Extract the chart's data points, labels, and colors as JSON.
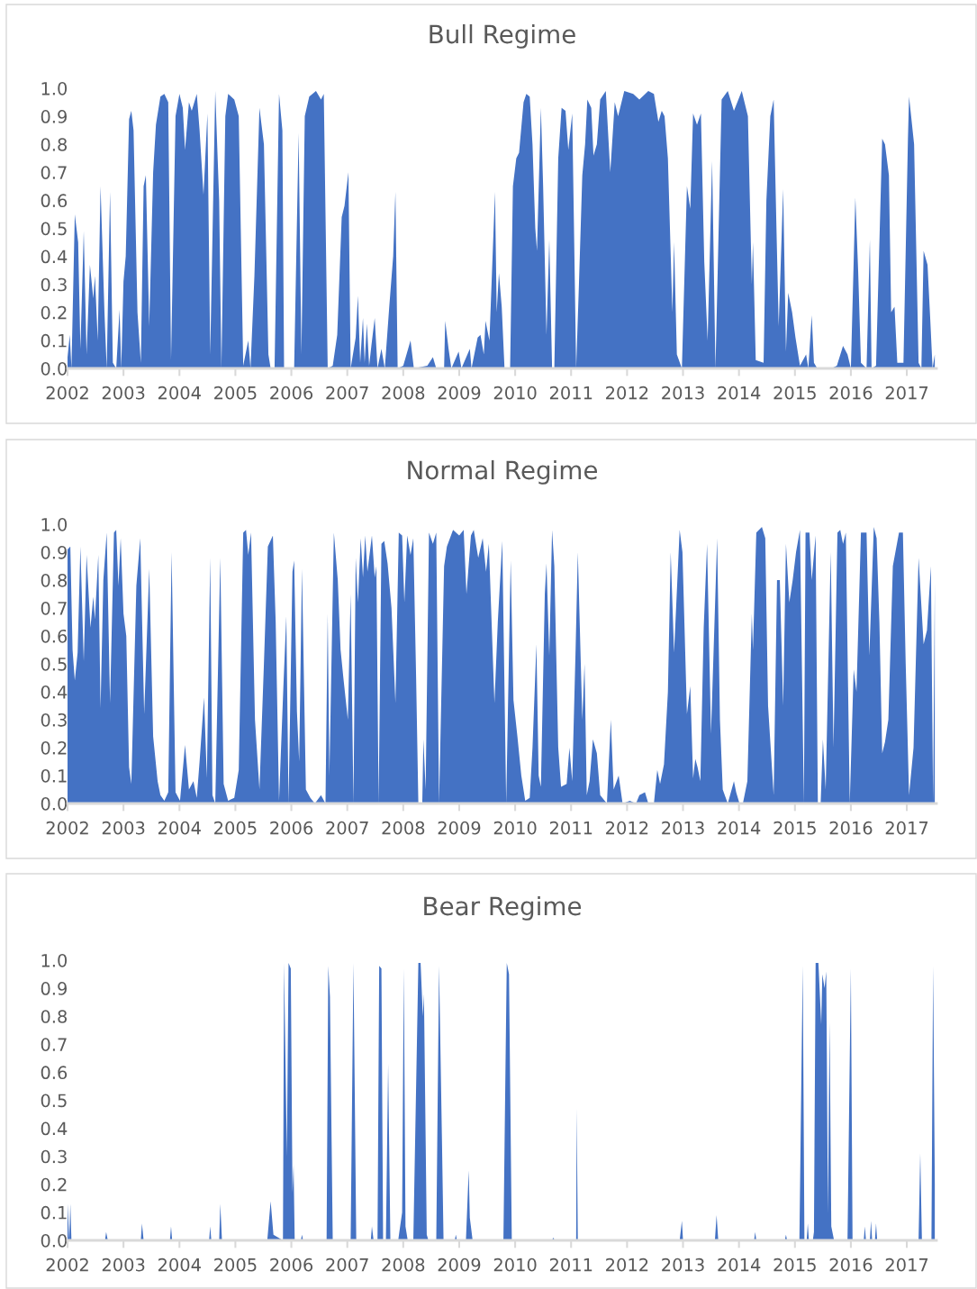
{
  "chart_data": [
    {
      "type": "area",
      "title": "Bull Regime",
      "color": "#4472c4",
      "grid": false,
      "xlim": [
        2002,
        2017.53
      ],
      "ylim": [
        0,
        1.0
      ],
      "xticks": [
        2002,
        2003,
        2004,
        2005,
        2006,
        2007,
        2008,
        2009,
        2010,
        2011,
        2012,
        2013,
        2014,
        2015,
        2016,
        2017
      ],
      "yticks": [
        {
          "value": 0,
          "label": "0.0"
        },
        {
          "value": 0.1,
          "label": "0.1"
        },
        {
          "value": 0.2,
          "label": "0.2"
        },
        {
          "value": 0.3,
          "label": "0.3"
        },
        {
          "value": 0.4,
          "label": "0.4"
        },
        {
          "value": 0.5,
          "label": "0.5"
        },
        {
          "value": 0.6,
          "label": "0.6"
        },
        {
          "value": 0.7,
          "label": "0.7"
        },
        {
          "value": 0.8,
          "label": "0.8"
        },
        {
          "value": 0.9,
          "label": "0.9"
        },
        {
          "value": 1.0,
          "label": "1.0"
        }
      ],
      "x": [
        2002.0,
        2002.04,
        2002.07,
        2002.13,
        2002.19,
        2002.23,
        2002.29,
        2002.34,
        2002.4,
        2002.46,
        2002.49,
        2002.54,
        2002.59,
        2002.66,
        2002.7,
        2002.76,
        2002.81,
        2002.87,
        2002.93,
        2002.96,
        2003.0,
        2003.04,
        2003.1,
        2003.14,
        2003.18,
        2003.25,
        2003.31,
        2003.36,
        2003.4,
        2003.46,
        2003.53,
        2003.58,
        2003.66,
        2003.73,
        2003.8,
        2003.85,
        2003.93,
        2004.0,
        2004.06,
        2004.1,
        2004.17,
        2004.22,
        2004.31,
        2004.36,
        2004.43,
        2004.5,
        2004.55,
        2004.64,
        2004.71,
        2004.75,
        2004.82,
        2004.87,
        2004.98,
        2005.06,
        2005.14,
        2005.23,
        2005.27,
        2005.34,
        2005.43,
        2005.51,
        2005.59,
        2005.63,
        2005.7,
        2005.78,
        2005.84,
        2005.87,
        2006.05,
        2006.13,
        2006.18,
        2006.24,
        2006.32,
        2006.44,
        2006.53,
        2006.58,
        2006.65,
        2006.74,
        2006.82,
        2006.9,
        2006.95,
        2007.02,
        2007.06,
        2007.15,
        2007.19,
        2007.23,
        2007.28,
        2007.31,
        2007.35,
        2007.39,
        2007.43,
        2007.49,
        2007.54,
        2007.61,
        2007.67,
        2007.75,
        2007.82,
        2007.86,
        2007.9,
        2008.0,
        2008.13,
        2008.19,
        2008.43,
        2008.53,
        2008.59,
        2008.73,
        2008.75,
        2008.81,
        2008.86,
        2008.99,
        2009.04,
        2009.19,
        2009.22,
        2009.33,
        2009.38,
        2009.44,
        2009.47,
        2009.54,
        2009.64,
        2009.67,
        2009.71,
        2009.76,
        2009.81,
        2009.91,
        2009.96,
        2010.02,
        2010.07,
        2010.15,
        2010.2,
        2010.26,
        2010.31,
        2010.36,
        2010.39,
        2010.46,
        2010.5,
        2010.56,
        2010.61,
        2010.66,
        2010.7,
        2010.77,
        2010.83,
        2010.9,
        2010.95,
        2011.02,
        2011.09,
        2011.14,
        2011.2,
        2011.25,
        2011.29,
        2011.36,
        2011.4,
        2011.46,
        2011.52,
        2011.62,
        2011.7,
        2011.78,
        2011.84,
        2011.95,
        2012.11,
        2012.22,
        2012.38,
        2012.48,
        2012.56,
        2012.62,
        2012.67,
        2012.73,
        2012.81,
        2012.84,
        2012.89,
        2012.98,
        2013.07,
        2013.13,
        2013.18,
        2013.25,
        2013.32,
        2013.38,
        2013.44,
        2013.52,
        2013.58,
        2013.69,
        2013.8,
        2013.91,
        2014.05,
        2014.16,
        2014.23,
        2014.25,
        2014.3,
        2014.44,
        2014.49,
        2014.56,
        2014.62,
        2014.67,
        2014.71,
        2014.79,
        2014.84,
        2014.88,
        2014.95,
        2015.01,
        2015.09,
        2015.2,
        2015.24,
        2015.3,
        2015.34,
        2015.4,
        2015.65,
        2015.75,
        2015.86,
        2015.94,
        2016.0,
        2016.08,
        2016.13,
        2016.18,
        2016.28,
        2016.34,
        2016.37,
        2016.45,
        2016.56,
        2016.61,
        2016.68,
        2016.72,
        2016.78,
        2016.83,
        2016.94,
        2017.02,
        2017.04,
        2017.13,
        2017.21,
        2017.26,
        2017.3,
        2017.37,
        2017.42,
        2017.46,
        2017.5
      ],
      "values": [
        0.04,
        0.12,
        0.0,
        0.55,
        0.45,
        0.07,
        0.49,
        0.05,
        0.37,
        0.25,
        0.33,
        0.1,
        0.65,
        0.2,
        0.0,
        0.63,
        0.02,
        0.0,
        0.21,
        0.0,
        0.31,
        0.4,
        0.89,
        0.92,
        0.85,
        0.2,
        0.02,
        0.65,
        0.69,
        0.15,
        0.7,
        0.87,
        0.97,
        0.98,
        0.95,
        0.03,
        0.9,
        0.98,
        0.93,
        0.78,
        0.95,
        0.92,
        0.98,
        0.85,
        0.62,
        0.91,
        0.05,
        0.99,
        0.6,
        0.0,
        0.9,
        0.98,
        0.96,
        0.9,
        0.01,
        0.1,
        0.0,
        0.33,
        0.93,
        0.8,
        0.05,
        0.0,
        0.0,
        0.98,
        0.85,
        0.0,
        0.0,
        0.84,
        0.05,
        0.9,
        0.97,
        0.99,
        0.96,
        0.98,
        0.0,
        0.01,
        0.12,
        0.54,
        0.58,
        0.7,
        0.0,
        0.11,
        0.26,
        0.02,
        0.18,
        0.02,
        0.16,
        0.01,
        0.08,
        0.18,
        0.0,
        0.07,
        0.0,
        0.22,
        0.4,
        0.63,
        0.0,
        0.01,
        0.1,
        0.0,
        0.01,
        0.04,
        0.0,
        0.0,
        0.17,
        0.07,
        0.0,
        0.06,
        0.0,
        0.07,
        0.0,
        0.11,
        0.12,
        0.05,
        0.17,
        0.1,
        0.63,
        0.2,
        0.34,
        0.22,
        0.0,
        0.0,
        0.65,
        0.75,
        0.77,
        0.95,
        0.98,
        0.97,
        0.8,
        0.5,
        0.42,
        0.93,
        0.65,
        0.12,
        0.46,
        0.0,
        0.0,
        0.75,
        0.93,
        0.92,
        0.78,
        0.91,
        0.0,
        0.3,
        0.69,
        0.8,
        0.96,
        0.93,
        0.76,
        0.8,
        0.96,
        0.99,
        0.7,
        0.95,
        0.9,
        0.99,
        0.98,
        0.96,
        0.99,
        0.98,
        0.88,
        0.92,
        0.9,
        0.75,
        0.2,
        0.45,
        0.05,
        0.0,
        0.65,
        0.57,
        0.91,
        0.87,
        0.91,
        0.38,
        0.1,
        0.74,
        0.0,
        0.96,
        0.99,
        0.92,
        0.99,
        0.9,
        0.3,
        0.45,
        0.03,
        0.02,
        0.6,
        0.9,
        0.96,
        0.5,
        0.15,
        0.64,
        0.06,
        0.27,
        0.2,
        0.11,
        0.01,
        0.05,
        0.0,
        0.19,
        0.02,
        0.0,
        0.0,
        0.01,
        0.08,
        0.05,
        0.0,
        0.61,
        0.35,
        0.02,
        0.0,
        0.46,
        0.0,
        0.01,
        0.82,
        0.8,
        0.69,
        0.2,
        0.22,
        0.02,
        0.02,
        0.82,
        0.97,
        0.8,
        0.02,
        0.0,
        0.42,
        0.37,
        0.17,
        0.0,
        0.05
      ]
    },
    {
      "type": "area",
      "title": "Normal Regime",
      "color": "#4472c4",
      "grid": false,
      "xlim": [
        2002,
        2017.53
      ],
      "ylim": [
        0,
        1.0
      ],
      "xticks": [
        2002,
        2003,
        2004,
        2005,
        2006,
        2007,
        2008,
        2009,
        2010,
        2011,
        2012,
        2013,
        2014,
        2015,
        2016,
        2017
      ],
      "yticks": [
        {
          "value": 0,
          "label": "0.0"
        },
        {
          "value": 0.1,
          "label": "0.1"
        },
        {
          "value": 0.2,
          "label": "0.2"
        },
        {
          "value": 0.3,
          "label": "0.3"
        },
        {
          "value": 0.4,
          "label": "0.4"
        },
        {
          "value": 0.5,
          "label": "0.5"
        },
        {
          "value": 0.6,
          "label": "0.6"
        },
        {
          "value": 0.7,
          "label": "0.7"
        },
        {
          "value": 0.8,
          "label": "0.8"
        },
        {
          "value": 0.9,
          "label": "0.9"
        },
        {
          "value": 1.0,
          "label": "1.0"
        }
      ],
      "x": [
        2002.0,
        2002.05,
        2002.09,
        2002.13,
        2002.18,
        2002.23,
        2002.29,
        2002.34,
        2002.41,
        2002.46,
        2002.49,
        2002.55,
        2002.59,
        2002.64,
        2002.7,
        2002.76,
        2002.83,
        2002.87,
        2002.91,
        2002.95,
        2003.0,
        2003.05,
        2003.1,
        2003.14,
        2003.23,
        2003.3,
        2003.37,
        2003.46,
        2003.53,
        2003.61,
        2003.66,
        2003.73,
        2003.8,
        2003.86,
        2003.93,
        2004.01,
        2004.1,
        2004.17,
        2004.25,
        2004.31,
        2004.36,
        2004.44,
        2004.49,
        2004.55,
        2004.59,
        2004.64,
        2004.73,
        2004.79,
        2004.87,
        2004.98,
        2005.06,
        2005.14,
        2005.19,
        2005.23,
        2005.28,
        2005.35,
        2005.43,
        2005.51,
        2005.58,
        2005.67,
        2005.72,
        2005.78,
        2005.86,
        2005.91,
        2005.95,
        2006.02,
        2006.05,
        2006.1,
        2006.14,
        2006.19,
        2006.26,
        2006.34,
        2006.42,
        2006.53,
        2006.61,
        2006.65,
        2006.68,
        2006.76,
        2006.83,
        2006.88,
        2006.93,
        2007.01,
        2007.06,
        2007.11,
        2007.15,
        2007.19,
        2007.24,
        2007.28,
        2007.32,
        2007.36,
        2007.44,
        2007.49,
        2007.52,
        2007.56,
        2007.61,
        2007.66,
        2007.72,
        2007.79,
        2007.86,
        2007.92,
        2007.98,
        2008.02,
        2008.07,
        2008.13,
        2008.18,
        2008.23,
        2008.27,
        2008.34,
        2008.36,
        2008.4,
        2008.46,
        2008.53,
        2008.59,
        2008.64,
        2008.73,
        2008.78,
        2008.89,
        2009.0,
        2009.08,
        2009.13,
        2009.21,
        2009.26,
        2009.34,
        2009.42,
        2009.48,
        2009.53,
        2009.63,
        2009.69,
        2009.77,
        2009.84,
        2009.92,
        2009.97,
        2010.04,
        2010.11,
        2010.18,
        2010.26,
        2010.31,
        2010.38,
        2010.42,
        2010.46,
        2010.53,
        2010.56,
        2010.61,
        2010.66,
        2010.7,
        2010.77,
        2010.82,
        2010.92,
        2010.97,
        2011.02,
        2011.08,
        2011.12,
        2011.2,
        2011.24,
        2011.28,
        2011.33,
        2011.39,
        2011.46,
        2011.52,
        2011.64,
        2011.71,
        2011.76,
        2011.85,
        2011.92,
        2012.05,
        2012.16,
        2012.22,
        2012.32,
        2012.38,
        2012.48,
        2012.54,
        2012.59,
        2012.66,
        2012.73,
        2012.78,
        2012.84,
        2012.94,
        2012.99,
        2013.07,
        2013.13,
        2013.18,
        2013.22,
        2013.26,
        2013.31,
        2013.37,
        2013.43,
        2013.5,
        2013.61,
        2013.66,
        2013.71,
        2013.8,
        2013.91,
        2013.95,
        2014.01,
        2014.07,
        2014.15,
        2014.23,
        2014.25,
        2014.31,
        2014.41,
        2014.47,
        2014.52,
        2014.62,
        2014.68,
        2014.73,
        2014.79,
        2014.84,
        2014.9,
        2014.96,
        2015.02,
        2015.09,
        2015.16,
        2015.19,
        2015.26,
        2015.3,
        2015.37,
        2015.41,
        2015.46,
        2015.5,
        2015.55,
        2015.64,
        2015.69,
        2015.76,
        2015.81,
        2015.86,
        2015.91,
        2015.98,
        2016.05,
        2016.1,
        2016.18,
        2016.28,
        2016.33,
        2016.41,
        2016.46,
        2016.51,
        2016.56,
        2016.61,
        2016.67,
        2016.75,
        2016.86,
        2016.93,
        2016.98,
        2017.04,
        2017.12,
        2017.21,
        2017.3,
        2017.36,
        2017.43,
        2017.47,
        2017.5
      ],
      "values": [
        0.91,
        0.92,
        0.55,
        0.44,
        0.54,
        0.92,
        0.51,
        0.89,
        0.63,
        0.74,
        0.66,
        0.89,
        0.34,
        0.8,
        0.97,
        0.36,
        0.97,
        0.98,
        0.78,
        0.95,
        0.68,
        0.6,
        0.13,
        0.07,
        0.78,
        0.95,
        0.32,
        0.84,
        0.24,
        0.08,
        0.03,
        0.01,
        0.04,
        0.9,
        0.04,
        0.01,
        0.21,
        0.05,
        0.08,
        0.02,
        0.15,
        0.38,
        0.09,
        0.88,
        0.03,
        0.0,
        0.88,
        0.07,
        0.01,
        0.02,
        0.12,
        0.97,
        0.98,
        0.89,
        0.97,
        0.3,
        0.05,
        0.5,
        0.92,
        0.96,
        0.65,
        0.01,
        0.43,
        0.67,
        0.0,
        0.83,
        0.87,
        0.33,
        0.15,
        0.84,
        0.05,
        0.02,
        0.0,
        0.03,
        0.0,
        0.68,
        0.1,
        0.97,
        0.8,
        0.55,
        0.45,
        0.3,
        0.75,
        0.0,
        0.88,
        0.72,
        0.95,
        0.81,
        0.96,
        0.83,
        0.96,
        0.81,
        0.85,
        0.0,
        0.93,
        0.94,
        0.86,
        0.7,
        0.36,
        0.97,
        0.96,
        0.72,
        0.96,
        0.89,
        0.95,
        0.45,
        0.0,
        0.0,
        0.23,
        0.05,
        0.97,
        0.93,
        0.97,
        0.0,
        0.85,
        0.92,
        0.98,
        0.96,
        0.98,
        0.75,
        0.96,
        0.98,
        0.88,
        0.95,
        0.83,
        0.93,
        0.36,
        0.65,
        0.94,
        0.0,
        0.87,
        0.37,
        0.24,
        0.1,
        0.01,
        0.02,
        0.2,
        0.57,
        0.1,
        0.06,
        0.75,
        0.86,
        0.53,
        0.98,
        0.85,
        0.2,
        0.06,
        0.07,
        0.2,
        0.08,
        0.55,
        0.9,
        0.3,
        0.5,
        0.03,
        0.08,
        0.23,
        0.18,
        0.03,
        0.0,
        0.3,
        0.05,
        0.1,
        0.0,
        0.01,
        0.0,
        0.03,
        0.04,
        0.0,
        0.0,
        0.12,
        0.07,
        0.14,
        0.4,
        0.9,
        0.54,
        0.98,
        0.9,
        0.32,
        0.42,
        0.09,
        0.16,
        0.13,
        0.08,
        0.63,
        0.93,
        0.25,
        0.95,
        0.3,
        0.05,
        0.0,
        0.08,
        0.04,
        0.0,
        0.0,
        0.08,
        0.68,
        0.55,
        0.97,
        0.99,
        0.95,
        0.35,
        0.03,
        0.8,
        0.8,
        0.35,
        0.93,
        0.72,
        0.8,
        0.9,
        0.98,
        0.0,
        0.97,
        0.97,
        0.8,
        0.96,
        0.0,
        0.0,
        0.23,
        0.05,
        0.9,
        0.2,
        0.97,
        0.98,
        0.93,
        0.97,
        0.0,
        0.48,
        0.4,
        0.97,
        0.97,
        0.53,
        0.99,
        0.95,
        0.65,
        0.18,
        0.22,
        0.3,
        0.85,
        0.97,
        0.97,
        0.5,
        0.03,
        0.2,
        0.88,
        0.57,
        0.62,
        0.85,
        0.0,
        0.79
      ]
    },
    {
      "type": "area",
      "title": "Bear Regime",
      "color": "#4472c4",
      "grid": false,
      "xlim": [
        2002,
        2017.53
      ],
      "ylim": [
        0,
        1.0
      ],
      "xticks": [
        2002,
        2003,
        2004,
        2005,
        2006,
        2007,
        2008,
        2009,
        2010,
        2011,
        2012,
        2013,
        2014,
        2015,
        2016,
        2017
      ],
      "yticks": [
        {
          "value": 0,
          "label": "0.0"
        },
        {
          "value": 0.1,
          "label": "0.1"
        },
        {
          "value": 0.2,
          "label": "0.2"
        },
        {
          "value": 0.3,
          "label": "0.3"
        },
        {
          "value": 0.4,
          "label": "0.4"
        },
        {
          "value": 0.5,
          "label": "0.5"
        },
        {
          "value": 0.6,
          "label": "0.6"
        },
        {
          "value": 0.7,
          "label": "0.7"
        },
        {
          "value": 0.8,
          "label": "0.8"
        },
        {
          "value": 0.9,
          "label": "0.9"
        },
        {
          "value": 1.0,
          "label": "1.0"
        }
      ],
      "x": [
        2002.0,
        2002.03,
        2002.05,
        2002.07,
        2002.67,
        2002.69,
        2002.72,
        2003.31,
        2003.33,
        2003.36,
        2003.83,
        2003.85,
        2003.87,
        2004.53,
        2004.55,
        2004.57,
        2004.71,
        2004.73,
        2004.76,
        2005.57,
        2005.63,
        2005.68,
        2005.85,
        2005.87,
        2005.92,
        2005.95,
        2005.99,
        2006.02,
        2006.04,
        2006.06,
        2006.17,
        2006.19,
        2006.21,
        2006.63,
        2006.66,
        2006.69,
        2006.74,
        2007.06,
        2007.11,
        2007.16,
        2007.42,
        2007.44,
        2007.47,
        2007.54,
        2007.57,
        2007.61,
        2007.64,
        2007.69,
        2007.73,
        2007.77,
        2007.91,
        2007.93,
        2007.98,
        2008.01,
        2008.04,
        2008.08,
        2008.18,
        2008.27,
        2008.31,
        2008.35,
        2008.37,
        2008.42,
        2008.45,
        2008.59,
        2008.64,
        2008.69,
        2008.72,
        2008.92,
        2008.94,
        2008.96,
        2009.12,
        2009.17,
        2009.19,
        2009.24,
        2009.79,
        2009.85,
        2009.89,
        2009.94,
        2010.66,
        2010.68,
        2010.71,
        2011.09,
        2011.1,
        2011.12,
        2012.94,
        2012.98,
        2013.0,
        2013.57,
        2013.6,
        2013.63,
        2014.27,
        2014.29,
        2014.31,
        2014.82,
        2014.84,
        2014.86,
        2015.08,
        2015.14,
        2015.17,
        2015.21,
        2015.23,
        2015.25,
        2015.32,
        2015.34,
        2015.37,
        2015.42,
        2015.47,
        2015.49,
        2015.53,
        2015.56,
        2015.59,
        2015.62,
        2015.65,
        2015.7,
        2015.94,
        2016.0,
        2016.03,
        2016.23,
        2016.25,
        2016.27,
        2016.34,
        2016.36,
        2016.38,
        2016.43,
        2016.45,
        2016.47,
        2017.21,
        2017.24,
        2017.27,
        2017.44,
        2017.47,
        2017.5
      ],
      "values": [
        0.13,
        0.0,
        0.13,
        0.0,
        0.0,
        0.03,
        0.0,
        0.0,
        0.06,
        0.0,
        0.0,
        0.05,
        0.0,
        0.0,
        0.05,
        0.0,
        0.0,
        0.13,
        0.0,
        0.0,
        0.14,
        0.02,
        0.0,
        0.99,
        0.3,
        0.99,
        0.97,
        0.17,
        0.27,
        0.0,
        0.0,
        0.02,
        0.0,
        0.0,
        0.98,
        0.87,
        0.0,
        0.0,
        0.99,
        0.0,
        0.0,
        0.05,
        0.0,
        0.0,
        0.98,
        0.97,
        0.0,
        0.0,
        0.63,
        0.0,
        0.0,
        0.03,
        0.1,
        0.97,
        0.05,
        0.0,
        0.0,
        0.99,
        0.99,
        0.8,
        0.88,
        0.02,
        0.0,
        0.0,
        0.98,
        0.38,
        0.0,
        0.0,
        0.02,
        0.0,
        0.0,
        0.25,
        0.08,
        0.0,
        0.0,
        0.99,
        0.95,
        0.0,
        0.0,
        0.01,
        0.0,
        0.0,
        0.47,
        0.0,
        0.0,
        0.07,
        0.0,
        0.0,
        0.09,
        0.0,
        0.0,
        0.03,
        0.0,
        0.0,
        0.02,
        0.0,
        0.0,
        0.98,
        0.0,
        0.0,
        0.06,
        0.0,
        0.0,
        0.03,
        0.99,
        0.99,
        0.77,
        0.95,
        0.9,
        0.96,
        0.1,
        0.78,
        0.05,
        0.0,
        0.0,
        0.97,
        0.0,
        0.0,
        0.05,
        0.0,
        0.0,
        0.07,
        0.0,
        0.0,
        0.06,
        0.0,
        0.0,
        0.31,
        0.0,
        0.0,
        0.98,
        0.2
      ]
    }
  ]
}
